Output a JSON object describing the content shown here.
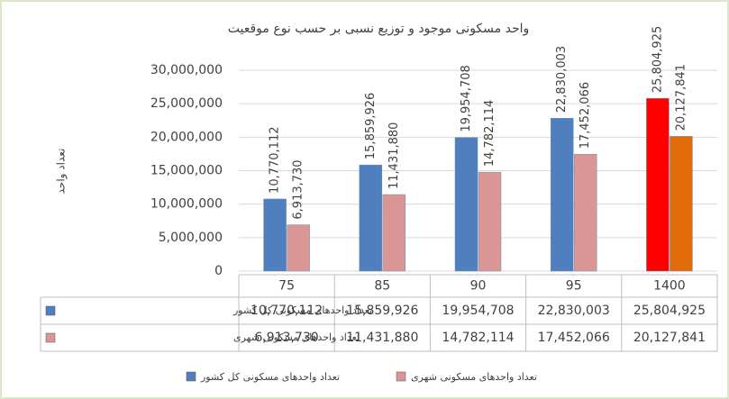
{
  "chart_data": {
    "type": "bar",
    "title": "واحد مسکونی موجود و توزیع نسبی بر حسب نوع موقعیت",
    "y_label": "تعداد واحد",
    "categories": [
      "75",
      "85",
      "90",
      "95",
      "1400"
    ],
    "series": [
      {
        "name": "تعداد واحدهای مسکونی کل کشور",
        "color": "#4f7fbf",
        "point_colors": [
          "#4f7fbf",
          "#4f7fbf",
          "#4f7fbf",
          "#4f7fbf",
          "#ff0000"
        ],
        "values": [
          10770112,
          15859926,
          19954708,
          22830003,
          25804925
        ],
        "value_labels": [
          "10,770,112",
          "15,859,926",
          "19,954,708",
          "22,830,003",
          "25,804,925"
        ]
      },
      {
        "name": "تعداد واحدهای مسکونی شهری",
        "color": "#d99694",
        "point_colors": [
          "#d99694",
          "#d99694",
          "#d99694",
          "#d99694",
          "#e36c0a"
        ],
        "values": [
          6913730,
          11431880,
          14782114,
          17452066,
          20127841
        ],
        "value_labels": [
          "6,913,730",
          "11,431,880",
          "14,782,114",
          "17,452,066",
          "20,127,841"
        ]
      }
    ],
    "ylim": [
      0,
      30000000
    ],
    "yticks": [
      0,
      {
        "value": 5000000,
        "label": "5,000,000"
      },
      {
        "value": 10000000,
        "label": "10,000,000"
      },
      {
        "value": 15000000,
        "label": "15,000,000"
      },
      {
        "value": 20000000,
        "label": "20,000,000"
      },
      {
        "value": 25000000,
        "label": "25,000,000"
      },
      {
        "value": 30000000,
        "label": "30,000,000"
      }
    ],
    "grid": true
  }
}
